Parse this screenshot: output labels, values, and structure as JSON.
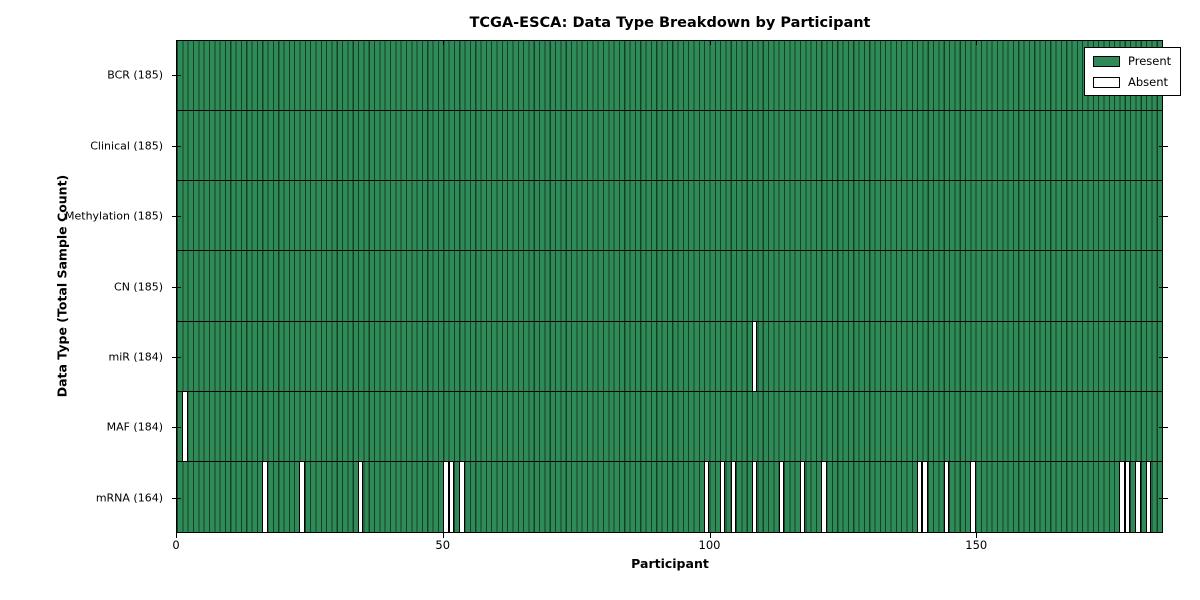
{
  "chart_data": {
    "type": "heatmap",
    "title": "TCGA-ESCA: Data Type Breakdown by Participant",
    "xlabel": "Participant",
    "ylabel": "Data Type (Total Sample Count)",
    "n_participants": 185,
    "xlim": [
      0,
      185
    ],
    "xticks": [
      "0",
      "50",
      "100",
      "150"
    ],
    "xtick_values": [
      0,
      50,
      100,
      150
    ],
    "grid": false,
    "legend": {
      "position": "upper right",
      "entries": [
        {
          "label": "Present",
          "color": "#2E8B57"
        },
        {
          "label": "Absent",
          "color": "#FFFFFF"
        }
      ]
    },
    "colors": {
      "present": "#2E8B57",
      "absent": "#FFFFFF",
      "edge": "#000000",
      "background": "#FFFFFF"
    },
    "rows": [
      {
        "label": "BCR (185)",
        "data_type": "BCR",
        "total": 185,
        "absent_participants": []
      },
      {
        "label": "Clinical (185)",
        "data_type": "Clinical",
        "total": 185,
        "absent_participants": []
      },
      {
        "label": "Methylation (185)",
        "data_type": "Methylation",
        "total": 185,
        "absent_participants": []
      },
      {
        "label": "CN (185)",
        "data_type": "CN",
        "total": 185,
        "absent_participants": []
      },
      {
        "label": "miR (184)",
        "data_type": "miR",
        "total": 184,
        "absent_participants": [
          108
        ]
      },
      {
        "label": "MAF (184)",
        "data_type": "MAF",
        "total": 184,
        "absent_participants": [
          1
        ]
      },
      {
        "label": "mRNA (164)",
        "data_type": "mRNA",
        "total": 164,
        "absent_participants": [
          16,
          23,
          34,
          50,
          51,
          53,
          99,
          102,
          104,
          108,
          113,
          117,
          121,
          139,
          140,
          144,
          149,
          177,
          178,
          180,
          182
        ]
      }
    ]
  }
}
